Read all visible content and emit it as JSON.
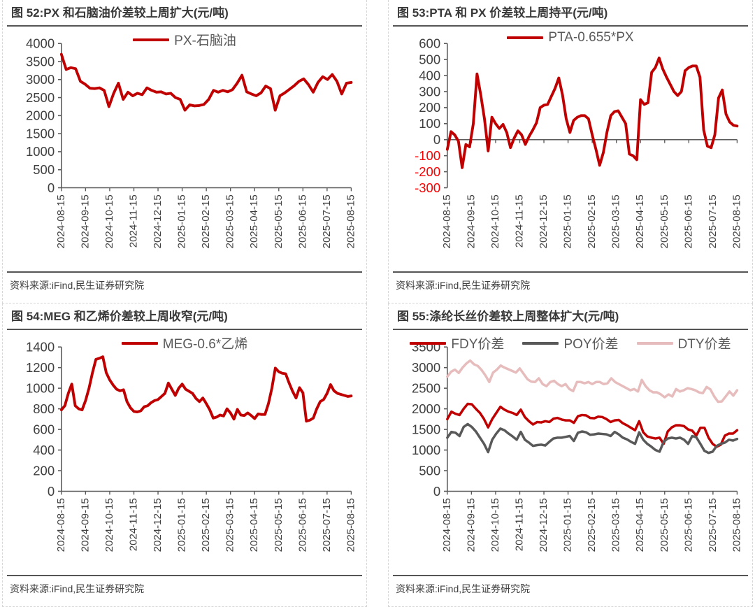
{
  "page": {
    "background": "#ffffff",
    "accent_red": "#C00000",
    "axis_color": "#595959",
    "label_color": "#404040",
    "negative_label_color": "#FF0000"
  },
  "x_labels": [
    "2024-08-15",
    "2024-09-15",
    "2024-10-15",
    "2024-11-15",
    "2024-12-15",
    "2025-01-15",
    "2025-02-15",
    "2025-03-15",
    "2025-04-15",
    "2025-05-15",
    "2025-06-15",
    "2025-07-15",
    "2025-08-15"
  ],
  "chart_data": [
    {
      "type": "line",
      "title": "图 52:PX 和石脑油价差较上周扩大(元/吨)",
      "source": "资料来源:iFind,民生证券研究院",
      "ylim": [
        0,
        4000
      ],
      "ytick": 500,
      "negative_red": false,
      "legend_position": "top-center",
      "grid": false,
      "x_labels": [
        "2024-08-15",
        "2024-09-15",
        "2024-10-15",
        "2024-11-15",
        "2024-12-15",
        "2025-01-15",
        "2025-02-15",
        "2025-03-15",
        "2025-04-15",
        "2025-05-15",
        "2025-06-15",
        "2025-07-15",
        "2025-08-15"
      ],
      "series": [
        {
          "name": "PX-石脑油",
          "color": "#C00000",
          "width": 4,
          "values": [
            3700,
            3280,
            3330,
            3300,
            2950,
            2870,
            2760,
            2750,
            2770,
            2700,
            2250,
            2620,
            2900,
            2450,
            2650,
            2550,
            2620,
            2580,
            2770,
            2700,
            2650,
            2660,
            2600,
            2620,
            2500,
            2450,
            2150,
            2300,
            2270,
            2280,
            2310,
            2450,
            2700,
            2650,
            2700,
            2660,
            2720,
            2900,
            3120,
            2660,
            2600,
            2550,
            2630,
            2820,
            2750,
            2150,
            2550,
            2630,
            2730,
            2830,
            2950,
            3020,
            2860,
            2650,
            2920,
            3080,
            3000,
            3140,
            2950,
            2600,
            2900,
            2920
          ]
        }
      ]
    },
    {
      "type": "line",
      "title": "图 53:PTA 和 PX 价差较上周持平(元/吨)",
      "source": "资料来源:iFind,民生证券研究院",
      "ylim": [
        -300,
        600
      ],
      "ytick": 100,
      "negative_red": true,
      "legend_position": "top-center",
      "grid": false,
      "x_labels": [
        "2024-08-15",
        "2024-09-15",
        "2024-10-15",
        "2024-11-15",
        "2024-12-15",
        "2025-01-15",
        "2025-02-15",
        "2025-03-15",
        "2025-04-15",
        "2025-05-15",
        "2025-06-15",
        "2025-07-15",
        "2025-08-15"
      ],
      "series": [
        {
          "name": "PTA-0.655*PX",
          "color": "#C00000",
          "width": 4,
          "values": [
            -60,
            50,
            30,
            -10,
            -175,
            -30,
            -45,
            100,
            410,
            280,
            130,
            -70,
            140,
            100,
            70,
            95,
            45,
            -50,
            10,
            55,
            30,
            -30,
            20,
            60,
            105,
            200,
            215,
            220,
            270,
            320,
            385,
            280,
            130,
            45,
            120,
            140,
            150,
            150,
            130,
            30,
            -60,
            -160,
            -80,
            50,
            150,
            175,
            180,
            140,
            100,
            -90,
            -100,
            -125,
            250,
            220,
            230,
            420,
            450,
            510,
            440,
            390,
            345,
            300,
            275,
            300,
            430,
            450,
            460,
            460,
            390,
            60,
            -40,
            -50,
            30,
            260,
            310,
            160,
            110,
            90,
            85
          ]
        }
      ]
    },
    {
      "type": "line",
      "title": "图 54:MEG 和乙烯价差较上周收窄(元/吨)",
      "source": "资料来源:iFind,民生证券研究院",
      "ylim": [
        0,
        1400
      ],
      "ytick": 200,
      "negative_red": false,
      "legend_position": "top-center",
      "grid": false,
      "x_labels": [
        "2024-08-15",
        "2024-09-15",
        "2024-10-15",
        "2024-11-15",
        "2024-12-15",
        "2025-01-15",
        "2025-02-15",
        "2025-03-15",
        "2025-04-15",
        "2025-05-15",
        "2025-06-15",
        "2025-07-15",
        "2025-08-15"
      ],
      "series": [
        {
          "name": "MEG-0.6*乙烯",
          "color": "#C00000",
          "width": 4,
          "values": [
            790,
            830,
            950,
            1040,
            830,
            800,
            790,
            880,
            1000,
            1150,
            1280,
            1290,
            1305,
            1150,
            1080,
            1030,
            990,
            975,
            985,
            870,
            810,
            775,
            770,
            780,
            820,
            830,
            860,
            880,
            890,
            920,
            950,
            1050,
            990,
            930,
            1000,
            1040,
            990,
            970,
            950,
            900,
            870,
            905,
            850,
            790,
            710,
            720,
            740,
            730,
            800,
            760,
            700,
            795,
            740,
            735,
            760,
            735,
            705,
            750,
            745,
            745,
            850,
            1000,
            1195,
            1160,
            1145,
            1140,
            1050,
            970,
            905,
            1005,
            955,
            680,
            690,
            710,
            800,
            870,
            890,
            950,
            1035,
            975,
            950,
            940,
            930,
            920,
            925
          ]
        }
      ]
    },
    {
      "type": "line",
      "title": "图 55:涤纶长丝价差较上周整体扩大(元/吨)",
      "source": "资料来源:iFind,民生证券研究院",
      "ylim": [
        0,
        3500
      ],
      "ytick": 500,
      "negative_red": false,
      "legend_position": "top-center",
      "grid": false,
      "x_labels": [
        "2024-08-15",
        "2024-09-15",
        "2024-10-15",
        "2024-11-15",
        "2024-12-15",
        "2025-01-15",
        "2025-02-15",
        "2025-03-15",
        "2025-04-15",
        "2025-05-15",
        "2025-06-15",
        "2025-07-15",
        "2025-08-15"
      ],
      "series": [
        {
          "name": "FDY价差",
          "color": "#C00000",
          "width": 3.6,
          "values": [
            1750,
            1930,
            1880,
            1850,
            2000,
            2120,
            2110,
            2000,
            1900,
            1750,
            1550,
            1750,
            1900,
            2050,
            1980,
            1930,
            1900,
            1850,
            1980,
            1800,
            1700,
            1620,
            1680,
            1670,
            1700,
            1680,
            1760,
            1780,
            1740,
            1720,
            1720,
            1660,
            1820,
            1850,
            1840,
            1780,
            1770,
            1810,
            1800,
            1750,
            1680,
            1720,
            1730,
            1650,
            1600,
            1540,
            1480,
            1700,
            1430,
            1330,
            1300,
            1280,
            1300,
            1150,
            1450,
            1550,
            1600,
            1600,
            1580,
            1500,
            1470,
            1350,
            1540,
            1540,
            1300,
            1150,
            1080,
            1130,
            1350,
            1400,
            1400,
            1480
          ]
        },
        {
          "name": "POY价差",
          "color": "#595959",
          "width": 3.6,
          "values": [
            1300,
            1440,
            1420,
            1340,
            1560,
            1630,
            1560,
            1450,
            1300,
            1150,
            950,
            1250,
            1400,
            1520,
            1480,
            1400,
            1330,
            1250,
            1440,
            1250,
            1180,
            1100,
            1120,
            1130,
            1110,
            1200,
            1280,
            1300,
            1300,
            1320,
            1340,
            1220,
            1420,
            1450,
            1430,
            1370,
            1380,
            1400,
            1390,
            1380,
            1340,
            1440,
            1380,
            1300,
            1260,
            1200,
            1150,
            1430,
            1250,
            1150,
            1080,
            1000,
            960,
            1200,
            1280,
            1300,
            1280,
            1300,
            1250,
            1150,
            1340,
            1310,
            1150,
            980,
            930,
            960,
            1100,
            1150,
            1180,
            1250,
            1230,
            1270
          ]
        },
        {
          "name": "DTY价差",
          "color": "#E7BCBC",
          "width": 3.6,
          "values": [
            2780,
            2900,
            2950,
            2870,
            3000,
            3100,
            3170,
            3080,
            3040,
            2940,
            2810,
            2650,
            2880,
            2950,
            3050,
            3000,
            2960,
            2920,
            2880,
            2980,
            2850,
            2720,
            2660,
            2650,
            2740,
            2600,
            2550,
            2650,
            2680,
            2600,
            2550,
            2600,
            2480,
            2430,
            2650,
            2650,
            2620,
            2650,
            2600,
            2650,
            2650,
            2600,
            2620,
            2740,
            2650,
            2600,
            2550,
            2500,
            2450,
            2480,
            2420,
            2700,
            2550,
            2450,
            2400,
            2400,
            2350,
            2280,
            2350,
            2300,
            2480,
            2420,
            2450,
            2500,
            2480,
            2450,
            2400,
            2380,
            2530,
            2470,
            2300,
            2170,
            2180,
            2300,
            2420,
            2320,
            2450
          ]
        }
      ]
    }
  ]
}
